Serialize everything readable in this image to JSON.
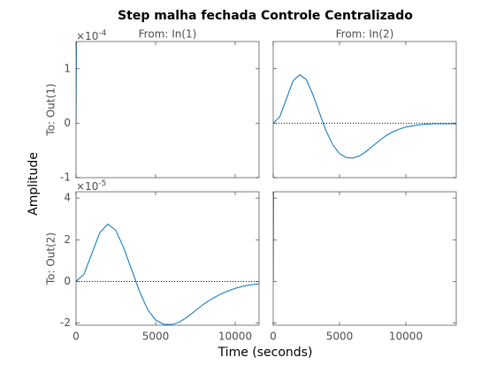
{
  "title": "Step malha fechada Controle Centralizado",
  "xlabel": "Time (seconds)",
  "ylabel": "Amplitude",
  "chart_data": [
    {
      "type": "line",
      "title": "From: In(1)",
      "ylabel": "To: Out(1)",
      "y_exponent": {
        "base": "×10",
        "power": "-4"
      },
      "x": [
        0,
        20
      ],
      "values": [
        0,
        1.5
      ],
      "color": "#0072bd",
      "xlim": [
        0,
        11500
      ],
      "xticks": [
        0,
        5000,
        10000
      ],
      "ylim": [
        -1,
        1.5
      ],
      "yticks": [
        -1,
        0,
        1
      ],
      "show_xticklabels": false,
      "show_yticklabels": true
    },
    {
      "type": "line",
      "title": "From: In(2)",
      "x": [
        0,
        500,
        1000,
        1500,
        2000,
        2500,
        3000,
        3500,
        4000,
        4500,
        5000,
        5500,
        6000,
        6500,
        7000,
        7500,
        8000,
        8500,
        9000,
        9500,
        10000,
        11000,
        12000,
        13000,
        13800
      ],
      "values": [
        0,
        0.12,
        0.45,
        0.78,
        0.89,
        0.8,
        0.52,
        0.18,
        -0.15,
        -0.4,
        -0.56,
        -0.63,
        -0.64,
        -0.6,
        -0.52,
        -0.42,
        -0.32,
        -0.23,
        -0.16,
        -0.11,
        -0.07,
        -0.03,
        -0.01,
        -0.01,
        -0.01
      ],
      "color": "#0072bd",
      "reference_line": 0,
      "xlim": [
        0,
        13800
      ],
      "xticks": [
        0,
        5000,
        10000
      ],
      "ylim": [
        -1,
        1.5
      ],
      "yticks": [
        -1,
        0,
        1
      ],
      "show_xticklabels": false,
      "show_yticklabels": false
    },
    {
      "type": "line",
      "ylabel": "To: Out(2)",
      "y_exponent": {
        "base": "×10",
        "power": "-5"
      },
      "x": [
        0,
        500,
        1000,
        1500,
        2000,
        2500,
        3000,
        3500,
        4000,
        4500,
        5000,
        5500,
        6000,
        6500,
        7000,
        7500,
        8000,
        8500,
        9000,
        9500,
        10000,
        10500,
        11000,
        11500
      ],
      "values": [
        0,
        0.35,
        1.35,
        2.35,
        2.75,
        2.45,
        1.6,
        0.55,
        -0.5,
        -1.35,
        -1.85,
        -2.05,
        -2.07,
        -1.95,
        -1.7,
        -1.4,
        -1.1,
        -0.85,
        -0.64,
        -0.47,
        -0.33,
        -0.23,
        -0.16,
        -0.11
      ],
      "color": "#0072bd",
      "reference_line": 0,
      "xlim": [
        0,
        11500
      ],
      "xticks": [
        0,
        5000,
        10000
      ],
      "ylim": [
        -2.1,
        4.3
      ],
      "yticks": [
        -2,
        0,
        2,
        4
      ],
      "show_xticklabels": true,
      "show_yticklabels": true
    },
    {
      "type": "line",
      "x": [
        0,
        20
      ],
      "values": [
        0,
        4.3
      ],
      "color": "#0072bd",
      "xlim": [
        0,
        13800
      ],
      "xticks": [
        0,
        5000,
        10000
      ],
      "ylim": [
        -2.1,
        4.3
      ],
      "yticks": [
        -2,
        0,
        2,
        4
      ],
      "show_xticklabels": true,
      "show_yticklabels": false
    }
  ]
}
